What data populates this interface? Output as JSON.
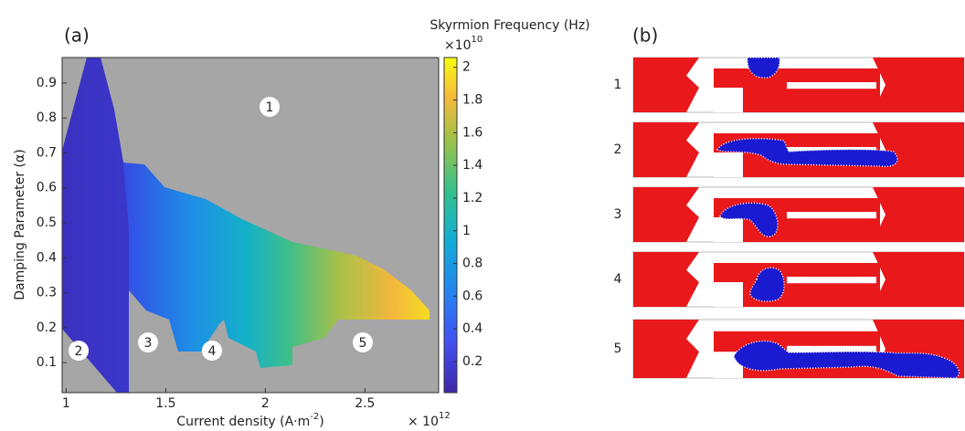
{
  "chart_data": {
    "type": "heatmap",
    "panel_label": "(a)",
    "xlabel": "Current density (A·m",
    "xlabel_exponent": "-2",
    "xlabel_end": ")",
    "x_scale_base": "× 10",
    "x_scale_exponent": "12",
    "ylabel": "Damping Parameter (α)",
    "xlim": [
      0.98,
      2.87
    ],
    "xticks": [
      1,
      1.5,
      2,
      2.5
    ],
    "ylim": [
      0.014,
      0.973
    ],
    "yticks": [
      0.1,
      0.2,
      0.3,
      0.4,
      0.5,
      0.6,
      0.7,
      0.8,
      0.9
    ],
    "colorbar": {
      "title": "Skyrmion Frequency (Hz)",
      "scale_base": "×10",
      "scale_exponent": "10",
      "clim": [
        0.01,
        2.06
      ],
      "ticks": [
        0.2,
        0.4,
        0.6,
        0.8,
        1,
        1.2,
        1.4,
        1.6,
        1.8,
        2
      ],
      "colormap": "parula"
    },
    "region_labels": [
      "1",
      "2",
      "3",
      "4",
      "5"
    ]
  },
  "panel_b": {
    "panel_label": "(b)",
    "row_labels": [
      "1",
      "2",
      "3",
      "4",
      "5"
    ]
  }
}
